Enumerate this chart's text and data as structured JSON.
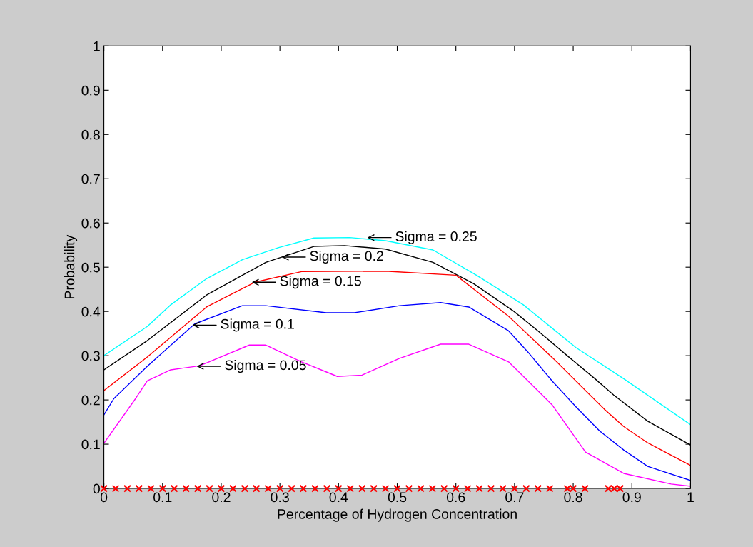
{
  "chart_data": {
    "type": "line",
    "xlabel": "Percentage of Hydrogen Concentration",
    "ylabel": "Probability",
    "xlim": [
      0,
      1
    ],
    "ylim": [
      0,
      1
    ],
    "xticks": [
      0,
      0.1,
      0.2,
      0.3,
      0.4,
      0.5,
      0.6,
      0.7,
      0.8,
      0.9,
      1
    ],
    "yticks": [
      0,
      0.1,
      0.2,
      0.3,
      0.4,
      0.5,
      0.6,
      0.7,
      0.8,
      0.9,
      1
    ],
    "grid": false,
    "marker": "none",
    "line_style": "solid",
    "series": [
      {
        "color": "#00ffff",
        "x": [
          0,
          0.074,
          0.114,
          0.175,
          0.236,
          0.297,
          0.358,
          0.419,
          0.48,
          0.561,
          0.635,
          0.715,
          0.805,
          0.886,
          1.0
        ],
        "values": [
          0.3,
          0.366,
          0.415,
          0.474,
          0.517,
          0.544,
          0.566,
          0.567,
          0.56,
          0.539,
          0.482,
          0.415,
          0.318,
          0.248,
          0.144
        ]
      },
      {
        "color": "#000000",
        "x": [
          0,
          0.074,
          0.175,
          0.276,
          0.358,
          0.41,
          0.48,
          0.561,
          0.63,
          0.699,
          0.74,
          0.788,
          0.837,
          0.869,
          0.927,
          1.0
        ],
        "values": [
          0.268,
          0.334,
          0.437,
          0.511,
          0.547,
          0.549,
          0.541,
          0.511,
          0.463,
          0.4,
          0.356,
          0.302,
          0.248,
          0.211,
          0.152,
          0.098
        ]
      },
      {
        "color": "#ff0000",
        "x": [
          0,
          0.074,
          0.175,
          0.257,
          0.337,
          0.48,
          0.6,
          0.69,
          0.772,
          0.821,
          0.853,
          0.886,
          0.927,
          1.0
        ],
        "values": [
          0.221,
          0.297,
          0.41,
          0.466,
          0.49,
          0.491,
          0.482,
          0.389,
          0.286,
          0.221,
          0.179,
          0.14,
          0.103,
          0.052
        ]
      },
      {
        "color": "#0000ff",
        "x": [
          0,
          0.017,
          0.074,
          0.155,
          0.236,
          0.276,
          0.379,
          0.427,
          0.504,
          0.574,
          0.622,
          0.69,
          0.723,
          0.764,
          0.805,
          0.845,
          0.886,
          0.927,
          1.0
        ],
        "values": [
          0.166,
          0.203,
          0.276,
          0.372,
          0.413,
          0.413,
          0.397,
          0.397,
          0.413,
          0.42,
          0.41,
          0.356,
          0.308,
          0.243,
          0.184,
          0.13,
          0.087,
          0.05,
          0.018
        ]
      },
      {
        "color": "#ff00ff",
        "x": [
          0,
          0.054,
          0.074,
          0.114,
          0.163,
          0.248,
          0.276,
          0.337,
          0.398,
          0.44,
          0.504,
          0.574,
          0.622,
          0.69,
          0.764,
          0.821,
          0.886,
          0.967,
          1.0
        ],
        "values": [
          0.102,
          0.203,
          0.243,
          0.268,
          0.277,
          0.324,
          0.324,
          0.286,
          0.253,
          0.256,
          0.294,
          0.326,
          0.326,
          0.286,
          0.189,
          0.082,
          0.034,
          0.01,
          0.005
        ]
      },
      {
        "type": "scatter",
        "color": "#ff0000",
        "marker": "cross",
        "x": [
          0,
          0.02,
          0.04,
          0.06,
          0.08,
          0.1,
          0.12,
          0.14,
          0.16,
          0.18,
          0.2,
          0.22,
          0.24,
          0.26,
          0.28,
          0.3,
          0.32,
          0.34,
          0.36,
          0.38,
          0.4,
          0.42,
          0.44,
          0.46,
          0.48,
          0.5,
          0.52,
          0.54,
          0.56,
          0.58,
          0.6,
          0.62,
          0.64,
          0.66,
          0.68,
          0.7,
          0.72,
          0.74,
          0.76,
          0.79,
          0.8,
          0.82,
          0.86,
          0.87,
          0.88
        ],
        "values": [
          0,
          0,
          0,
          0,
          0,
          0,
          0,
          0,
          0,
          0,
          0,
          0,
          0,
          0,
          0,
          0,
          0,
          0,
          0,
          0,
          0,
          0,
          0,
          0,
          0,
          0,
          0,
          0,
          0,
          0,
          0,
          0,
          0,
          0,
          0,
          0,
          0,
          0,
          0,
          0,
          0,
          0,
          0,
          0,
          0
        ]
      }
    ],
    "annotations": [
      {
        "text": "Sigma = 0.25",
        "x": 0.449,
        "y": 0.567
      },
      {
        "text": "Sigma = 0.2",
        "x": 0.303,
        "y": 0.523
      },
      {
        "text": "Sigma = 0.15",
        "x": 0.252,
        "y": 0.466
      },
      {
        "text": "Sigma = 0.1",
        "x": 0.151,
        "y": 0.369
      },
      {
        "text": "Sigma = 0.05",
        "x": 0.158,
        "y": 0.276
      }
    ]
  }
}
